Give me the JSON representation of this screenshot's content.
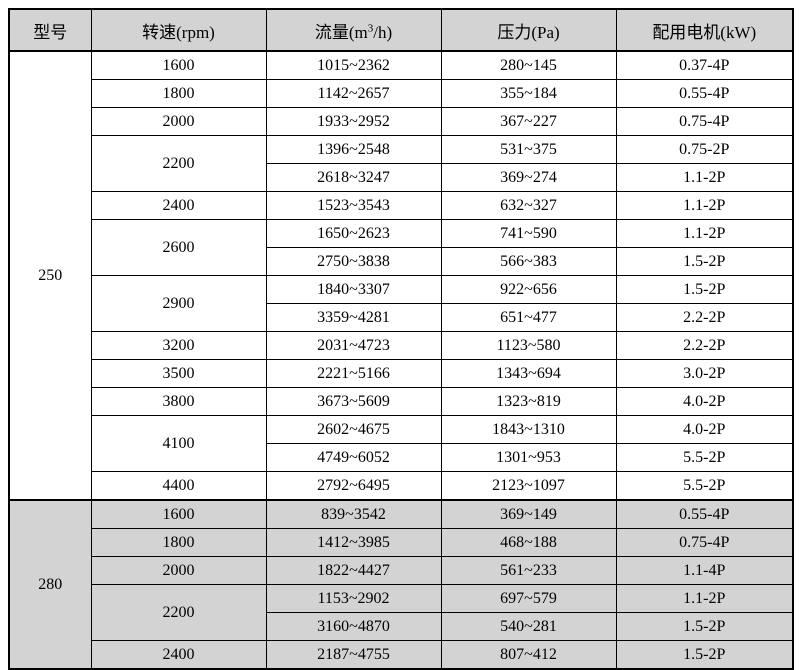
{
  "page": {
    "background": "#ffffff"
  },
  "table": {
    "border_color": "#000000",
    "header_bg": "#d3d3d3",
    "shaded_bg": "#d3d3d3",
    "header": {
      "model": "型号",
      "speed": "转速(rpm)",
      "flow_pre": "流量(m",
      "flow_sup": "3",
      "flow_post": "/h)",
      "pressure": "压力(Pa)",
      "motor": "配用电机(kW)"
    },
    "sections": [
      {
        "model": "250",
        "shaded": false,
        "groups": [
          {
            "speed": "1600",
            "rows": [
              [
                "1015~2362",
                "280~145",
                "0.37-4P"
              ]
            ]
          },
          {
            "speed": "1800",
            "rows": [
              [
                "1142~2657",
                "355~184",
                "0.55-4P"
              ]
            ]
          },
          {
            "speed": "2000",
            "rows": [
              [
                "1933~2952",
                "367~227",
                "0.75-4P"
              ]
            ]
          },
          {
            "speed": "2200",
            "rows": [
              [
                "1396~2548",
                "531~375",
                "0.75-2P"
              ],
              [
                "2618~3247",
                "369~274",
                "1.1-2P"
              ]
            ]
          },
          {
            "speed": "2400",
            "rows": [
              [
                "1523~3543",
                "632~327",
                "1.1-2P"
              ]
            ]
          },
          {
            "speed": "2600",
            "rows": [
              [
                "1650~2623",
                "741~590",
                "1.1-2P"
              ],
              [
                "2750~3838",
                "566~383",
                "1.5-2P"
              ]
            ]
          },
          {
            "speed": "2900",
            "rows": [
              [
                "1840~3307",
                "922~656",
                "1.5-2P"
              ],
              [
                "3359~4281",
                "651~477",
                "2.2-2P"
              ]
            ]
          },
          {
            "speed": "3200",
            "rows": [
              [
                "2031~4723",
                "1123~580",
                "2.2-2P"
              ]
            ]
          },
          {
            "speed": "3500",
            "rows": [
              [
                "2221~5166",
                "1343~694",
                "3.0-2P"
              ]
            ]
          },
          {
            "speed": "3800",
            "rows": [
              [
                "3673~5609",
                "1323~819",
                "4.0-2P"
              ]
            ]
          },
          {
            "speed": "4100",
            "rows": [
              [
                "2602~4675",
                "1843~1310",
                "4.0-2P"
              ],
              [
                "4749~6052",
                "1301~953",
                "5.5-2P"
              ]
            ]
          },
          {
            "speed": "4400",
            "rows": [
              [
                "2792~6495",
                "2123~1097",
                "5.5-2P"
              ]
            ]
          }
        ]
      },
      {
        "model": "280",
        "shaded": true,
        "groups": [
          {
            "speed": "1600",
            "rows": [
              [
                "839~3542",
                "369~149",
                "0.55-4P"
              ]
            ]
          },
          {
            "speed": "1800",
            "rows": [
              [
                "1412~3985",
                "468~188",
                "0.75-4P"
              ]
            ]
          },
          {
            "speed": "2000",
            "rows": [
              [
                "1822~4427",
                "561~233",
                "1.1-4P"
              ]
            ]
          },
          {
            "speed": "2200",
            "rows": [
              [
                "1153~2902",
                "697~579",
                "1.1-2P"
              ],
              [
                "3160~4870",
                "540~281",
                "1.5-2P"
              ]
            ]
          },
          {
            "speed": "2400",
            "rows": [
              [
                "2187~4755",
                "807~412",
                "1.5-2P"
              ]
            ]
          }
        ]
      }
    ]
  }
}
